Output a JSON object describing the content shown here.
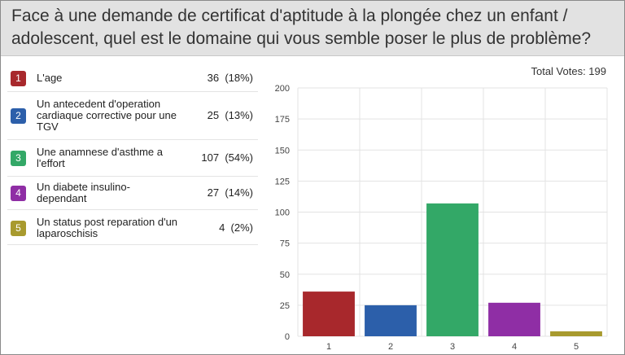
{
  "question": "Face à une demande de certificat d'aptitude à la plongée chez un enfant / adolescent, quel est le domaine qui vous semble poser le plus de problème?",
  "total_votes_label": "Total Votes: 199",
  "answers": [
    {
      "number": "1",
      "label": "L'age",
      "votes": "36",
      "percent": "(18%)",
      "color": "#a8282c"
    },
    {
      "number": "2",
      "label": "Un antecedent d'operation cardiaque corrective pour une TGV",
      "votes": "25",
      "percent": "(13%)",
      "color": "#2c5faa"
    },
    {
      "number": "3",
      "label": "Une anamnese d'asthme a l'effort",
      "votes": "107",
      "percent": "(54%)",
      "color": "#33a867"
    },
    {
      "number": "4",
      "label": "Un diabete insulino-dependant",
      "votes": "27",
      "percent": "(14%)",
      "color": "#8f2ea5"
    },
    {
      "number": "5",
      "label": "Un status post reparation d'un laparoschisis",
      "votes": "4",
      "percent": "(2%)",
      "color": "#a89a2e"
    }
  ],
  "chart_data": {
    "type": "bar",
    "categories": [
      "1",
      "2",
      "3",
      "4",
      "5"
    ],
    "values": [
      36,
      25,
      107,
      27,
      4
    ],
    "colors": [
      "#a8282c",
      "#2c5faa",
      "#33a867",
      "#8f2ea5",
      "#a89a2e"
    ],
    "ylim": [
      0,
      200
    ],
    "yticks": [
      0,
      25,
      50,
      75,
      100,
      125,
      150,
      175,
      200
    ],
    "ytick_labels": [
      "0",
      "25",
      "50",
      "75",
      "100",
      "125",
      "150",
      "175",
      "200"
    ],
    "grid": true,
    "title": "",
    "xlabel": "",
    "ylabel": ""
  }
}
